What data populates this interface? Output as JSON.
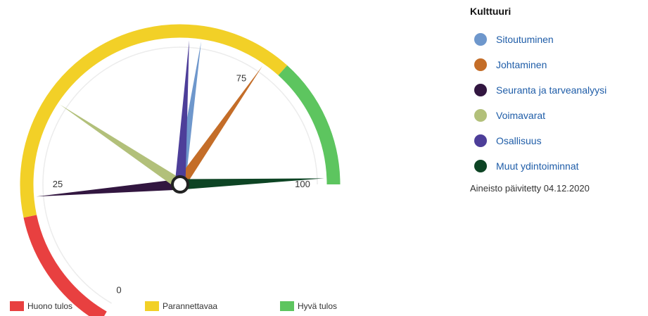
{
  "chart_data": {
    "type": "gauge",
    "range": [
      0,
      100
    ],
    "ticks": [
      "0",
      "25",
      "75",
      "100"
    ],
    "bands": [
      {
        "label": "Huono tulos",
        "from": 0,
        "to": 20,
        "color": "#e84040"
      },
      {
        "label": "Parannettavaa",
        "from": 20,
        "to": 80,
        "color": "#f2d027"
      },
      {
        "label": "Hyvä tulos",
        "from": 80,
        "to": 100,
        "color": "#5dc55f"
      }
    ],
    "series": [
      {
        "name": "Sitoutuminen",
        "value": 66,
        "color": "#6e97cc"
      },
      {
        "name": "Johtaminen",
        "value": 77,
        "color": "#c46d28"
      },
      {
        "name": "Seuranta ja tarveanalyysi",
        "value": 23,
        "color": "#321640"
      },
      {
        "name": "Voimavarat",
        "value": 39,
        "color": "#b2c07a"
      },
      {
        "name": "Osallisuus",
        "value": 64,
        "color": "#4d3e99"
      },
      {
        "name": "Muut ydintoiminnat",
        "value": 99,
        "color": "#0d4424"
      }
    ]
  },
  "sidebar": {
    "title": "Kulttuuri",
    "updated": "Aineisto päivitetty 04.12.2020"
  },
  "colors": {
    "ring_track": "#ececec",
    "hub_fill": "#ffffff",
    "hub_stroke": "#222222",
    "link_text": "#1f5da8"
  }
}
